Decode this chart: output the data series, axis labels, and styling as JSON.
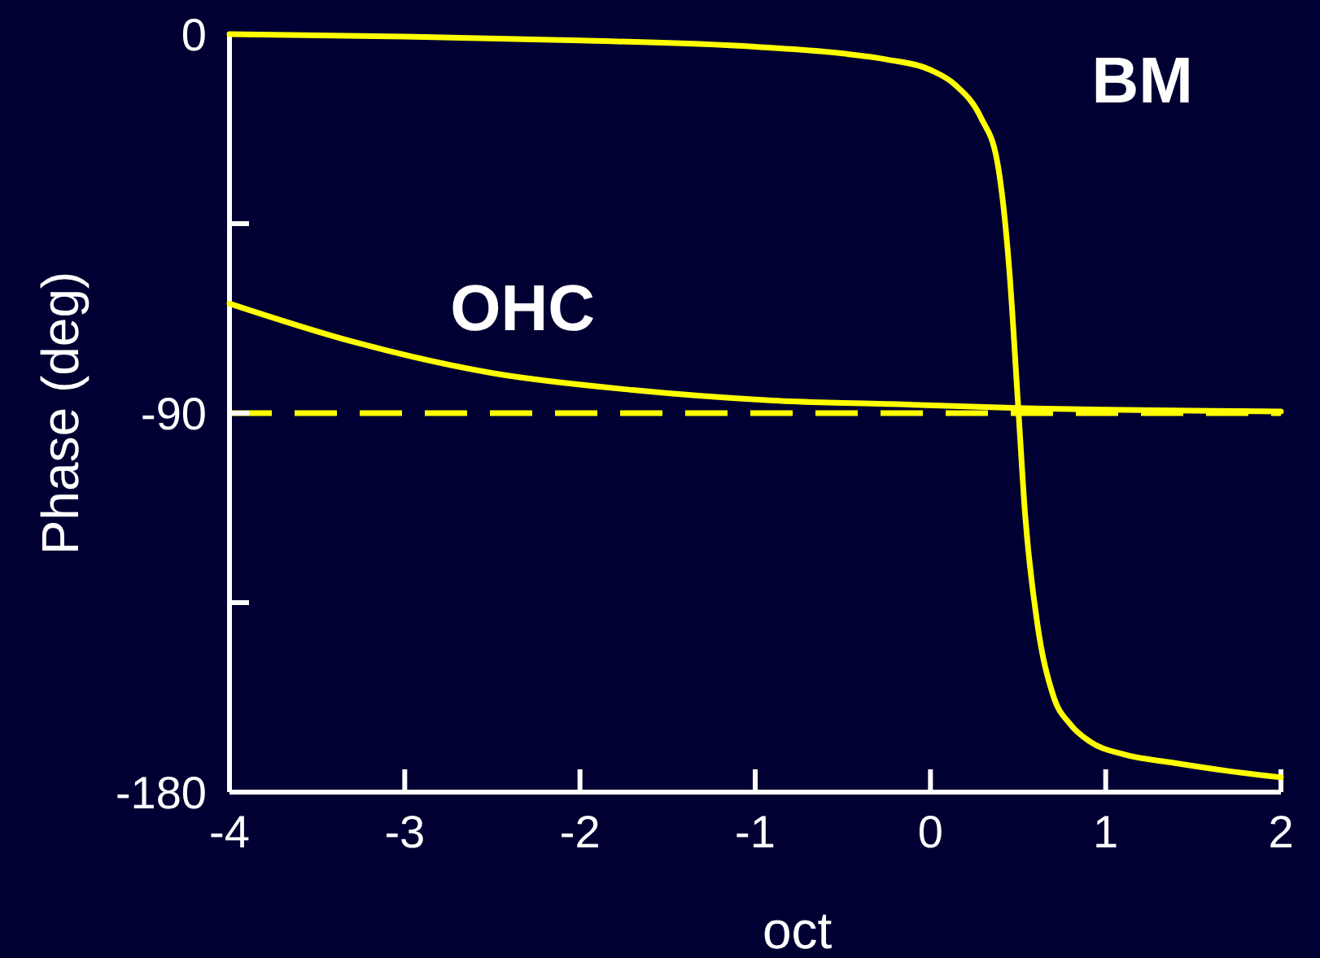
{
  "chart_data": {
    "type": "line",
    "xlabel": "oct",
    "ylabel": "Phase (deg)",
    "xlim": [
      -4,
      2
    ],
    "xticks": [
      -4,
      -3,
      -2,
      -1,
      0,
      1,
      2
    ],
    "ylim": [
      -180,
      0
    ],
    "yticks": [
      {
        "value": -180,
        "label": "-180"
      },
      {
        "value": -135,
        "label": null
      },
      {
        "value": -90,
        "label": "-90"
      },
      {
        "value": -45,
        "label": null
      },
      0
    ],
    "series": [
      {
        "name": "BM",
        "color": "#ffff00",
        "x": [
          -4,
          -3,
          -2,
          -1,
          -0.5,
          -0.25,
          0,
          0.14,
          0.29,
          0.38,
          0.45,
          0.5,
          0.54,
          0.61,
          0.7,
          0.8,
          0.91,
          1.1,
          1.38,
          1.7,
          2
        ],
        "values": [
          0,
          -0.6,
          -1.5,
          -3,
          -4.6,
          -6,
          -8.5,
          -12,
          -20,
          -30,
          -56,
          -88,
          -114,
          -140,
          -157,
          -164,
          -168,
          -171,
          -173,
          -175,
          -176.5
        ]
      },
      {
        "name": "OHC",
        "color": "#ffff00",
        "x": [
          -4,
          -3.3,
          -2.5,
          -1.7,
          -0.9,
          -0.1,
          0.5,
          1,
          1.5,
          2
        ],
        "values": [
          -64,
          -73,
          -80.5,
          -84.5,
          -87,
          -88,
          -88.8,
          -89.2,
          -89.4,
          -89.6
        ]
      }
    ],
    "ref_lines": [
      {
        "axis": "y",
        "value": -90,
        "color": "#ffff00",
        "line_style": "dashed"
      }
    ],
    "grid": false,
    "marker": "none",
    "line_style": "solid"
  }
}
